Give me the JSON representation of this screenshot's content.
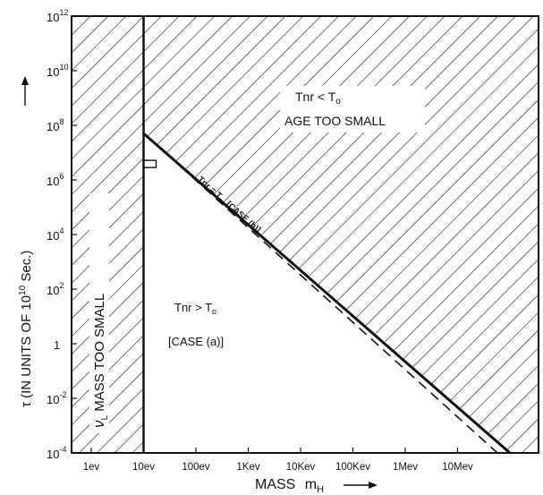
{
  "chart_data": {
    "type": "line",
    "x_axis": {
      "label": "MASS",
      "label_symbol": "m",
      "label_subscript": "H",
      "ticks": [
        "1ev",
        "10ev",
        "100ev",
        "1Kev",
        "10Kev",
        "100Kev",
        "1Mev",
        "10Mev"
      ],
      "scale": "log",
      "range_ev": [
        1,
        100000000
      ]
    },
    "y_axis": {
      "label": "τ (IN UNITS OF 10",
      "label_exp": "10",
      "label_unit": " Sec.)",
      "ticks": [
        {
          "value": 0.0001,
          "base": "10",
          "exp": "-4"
        },
        {
          "value": 0.01,
          "base": "10",
          "exp": "-2"
        },
        {
          "value": 1,
          "base": "1",
          "exp": ""
        },
        {
          "value": 100.0,
          "base": "10",
          "exp": "2"
        },
        {
          "value": 10000.0,
          "base": "10",
          "exp": "4"
        },
        {
          "value": 1000000.0,
          "base": "10",
          "exp": "6"
        },
        {
          "value": 100000000.0,
          "base": "10",
          "exp": "8"
        },
        {
          "value": 10000000000.0,
          "base": "10",
          "exp": "10"
        },
        {
          "value": 1000000000000.0,
          "base": "10",
          "exp": "12"
        }
      ],
      "scale": "log",
      "range": [
        0.0001,
        1000000000000
      ]
    },
    "regions": [
      {
        "name": "age-too-small",
        "line1": "Tnr < T",
        "line1_sub": "o",
        "line2": "AGE TOO SMALL",
        "hatched": true
      },
      {
        "name": "mass-too-small",
        "symbol": "ν",
        "symbol_sub": "L",
        "text": " MASS TOO SMALL",
        "hatched": true
      },
      {
        "name": "case-a",
        "line1": "Tnr > T",
        "line1_sub": "o",
        "line2": "[CASE (a)]",
        "hatched": false
      }
    ],
    "boundary_solid": {
      "label": "Tnr = T",
      "label_sub": "o",
      "label_case": "[CASE (b)]",
      "points": [
        [
          10,
          50000000
        ],
        [
          100000000,
          0.0001
        ]
      ]
    },
    "boundary_dashed": {
      "points": [
        [
          10,
          20000000
        ],
        [
          100000000,
          0.0001
        ]
      ]
    },
    "mass_limit_ev": 10
  }
}
